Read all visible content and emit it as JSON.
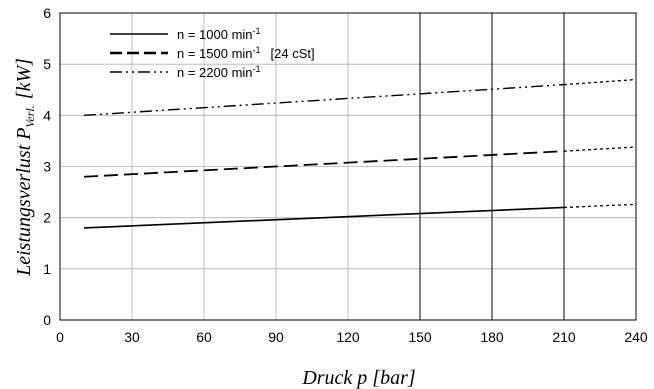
{
  "chart_data": {
    "type": "line",
    "title": "",
    "xlabel": "Druck p [bar]",
    "ylabel": "Leistungsverlust P",
    "ylabel_sub": "Verl.",
    "ylabel_unit": "[kW]",
    "xlim": [
      0,
      240
    ],
    "ylim": [
      0,
      6
    ],
    "xticks": [
      "0",
      "30",
      "60",
      "90",
      "120",
      "150",
      "180",
      "210",
      "240"
    ],
    "yticks": [
      "0",
      "1",
      "2",
      "3",
      "4",
      "5",
      "6"
    ],
    "grid": true,
    "legend_position": "top-left",
    "marker_lines_x": [
      150,
      180,
      210
    ],
    "series": [
      {
        "name": "n = 1000 min",
        "name_sup": "-1",
        "name_extra": "",
        "style": "solid",
        "x": [
          10,
          210
        ],
        "y": [
          1.8,
          2.2
        ],
        "extrapolated": {
          "x": [
            210,
            240
          ],
          "y": [
            2.2,
            2.26
          ]
        }
      },
      {
        "name": "n = 1500 min",
        "name_sup": "-1",
        "name_extra": "[24 cSt]",
        "style": "dashed",
        "x": [
          10,
          210
        ],
        "y": [
          2.8,
          3.3
        ],
        "extrapolated": {
          "x": [
            210,
            240
          ],
          "y": [
            3.3,
            3.38
          ]
        }
      },
      {
        "name": "n = 2200 min",
        "name_sup": "-1",
        "name_extra": "",
        "style": "dashdot",
        "x": [
          10,
          210
        ],
        "y": [
          4.0,
          4.6
        ],
        "extrapolated": {
          "x": [
            210,
            240
          ],
          "y": [
            4.6,
            4.7
          ]
        }
      }
    ]
  }
}
